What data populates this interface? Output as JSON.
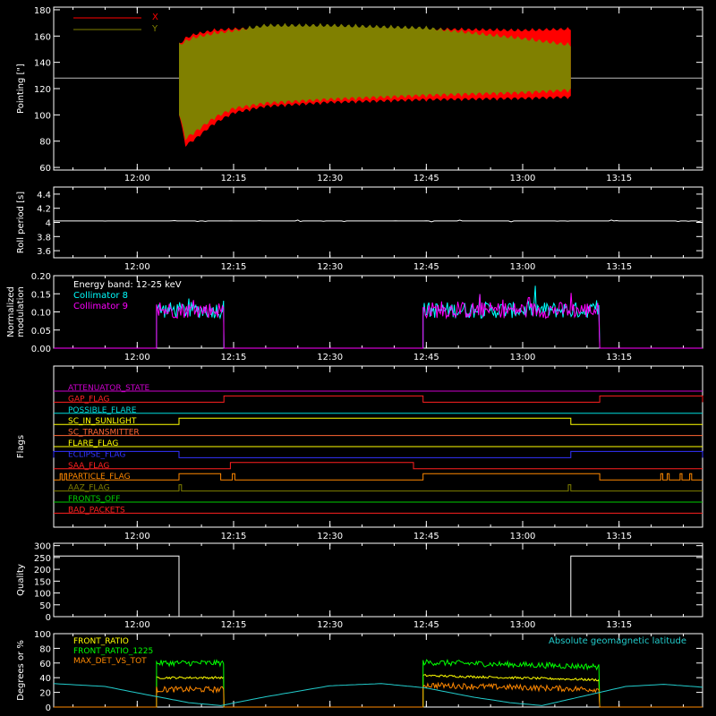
{
  "chart_data": [
    {
      "type": "area",
      "ylabel": "Pointing [\"]",
      "ylim": [
        58,
        182
      ],
      "xlim": [
        "11:47",
        "13:28"
      ],
      "x_ticks": [
        "12:00",
        "12:15",
        "12:30",
        "12:45",
        "13:00",
        "13:15"
      ],
      "y_ticks": [
        60,
        80,
        100,
        120,
        140,
        160,
        180
      ],
      "reference_line": 128,
      "data_start": "12:06.5",
      "data_end": "13:07.5",
      "legend": [
        {
          "name": "X",
          "color": "#ff0000"
        },
        {
          "name": "Y",
          "color": "#808000"
        }
      ],
      "series": [
        {
          "name": "X",
          "envelope_time": [
            "12:06.5",
            "12:07.5",
            "12:09",
            "12:12",
            "12:15",
            "12:20",
            "12:30",
            "12:45",
            "13:00",
            "13:07.5"
          ],
          "upper": [
            155,
            160,
            163,
            166,
            167,
            168,
            168,
            167,
            166,
            167
          ],
          "lower": [
            100,
            75,
            80,
            92,
            100,
            105,
            108,
            110,
            111,
            112
          ]
        },
        {
          "name": "Y",
          "envelope_time": [
            "12:06.5",
            "12:07.5",
            "12:09",
            "12:12",
            "12:15",
            "12:20",
            "12:30",
            "12:45",
            "13:00",
            "13:07.5"
          ],
          "upper": [
            155,
            158,
            161,
            164,
            166,
            170,
            170,
            168,
            160,
            155
          ],
          "lower": [
            100,
            80,
            85,
            96,
            103,
            107,
            110,
            113,
            115,
            117
          ]
        }
      ]
    },
    {
      "type": "line",
      "ylabel": "Roll period [s]",
      "ylim": [
        3.5,
        4.5
      ],
      "y_ticks": [
        3.6,
        3.8,
        4.0,
        4.2,
        4.4
      ],
      "x_ticks": [
        "12:00",
        "12:15",
        "12:30",
        "12:45",
        "13:00",
        "13:15"
      ],
      "series": [
        {
          "name": "",
          "value": 4.02
        }
      ]
    },
    {
      "type": "line",
      "ylabel": "Normalized modulation",
      "ylim": [
        0,
        0.2
      ],
      "y_ticks": [
        "0.00",
        "0.05",
        "0.10",
        "0.15",
        "0.20"
      ],
      "x_ticks": [
        "12:00",
        "12:15",
        "12:30",
        "12:45",
        "13:00",
        "13:15"
      ],
      "legend_title": "Energy band: 12-25 keV",
      "legend": [
        {
          "name": "Collimator 8",
          "color": "#00ffff"
        },
        {
          "name": "Collimator 9",
          "color": "#ff00ff"
        }
      ],
      "intervals": [
        [
          "12:03",
          "12:13.5"
        ],
        [
          "12:44.5",
          "13:12"
        ]
      ],
      "level_mean": 0.105
    },
    {
      "type": "line",
      "ylabel": "Flags",
      "x_ticks": [
        "12:00",
        "12:15",
        "12:30",
        "12:45",
        "13:00",
        "13:15"
      ],
      "flags": [
        {
          "name": "ATTENUATOR_STATE",
          "color": "#cc00cc",
          "high": []
        },
        {
          "name": "GAP_FLAG",
          "color": "#ff2020",
          "high": [
            [
              "12:13.5",
              "12:44.5"
            ],
            [
              "13:12",
              "13:28"
            ]
          ]
        },
        {
          "name": "POSSIBLE_FLARE",
          "color": "#00dddd",
          "high": []
        },
        {
          "name": "SC_IN_SUNLIGHT",
          "color": "#ffff00",
          "high": [
            [
              "12:06.5",
              "13:07.5"
            ]
          ]
        },
        {
          "name": "SC_TRANSMITTER",
          "color": "#ff6633",
          "high": []
        },
        {
          "name": "FLARE_FLAG",
          "color": "#ffff00",
          "high": []
        },
        {
          "name": "ECLIPSE_FLAG",
          "color": "#3333ff",
          "high": [
            [
              "11:47",
              "12:06.5"
            ],
            [
              "13:07.5",
              "13:28"
            ]
          ]
        },
        {
          "name": "SAA_FLAG",
          "color": "#ff2020",
          "high": [
            [
              "12:14.5",
              "12:43"
            ]
          ]
        },
        {
          "name": "PARTICLE_FLAG",
          "color": "#ff8800",
          "high": [
            [
              "11:48",
              "11:48.3"
            ],
            [
              "11:48.7",
              "11:49"
            ],
            [
              "12:06.5",
              "12:13"
            ],
            [
              "12:14.8",
              "12:15.2"
            ],
            [
              "12:44.5",
              "13:12"
            ],
            [
              "13:21.5",
              "13:21.8"
            ],
            [
              "13:22.5",
              "13:22.8"
            ],
            [
              "13:24.5",
              "13:24.8"
            ],
            [
              "13:26",
              "13:26.3"
            ]
          ]
        },
        {
          "name": "AAZ_FLAG",
          "color": "#808000",
          "high": [
            [
              "12:06.5",
              "12:06.9"
            ],
            [
              "13:07.1",
              "13:07.5"
            ]
          ]
        },
        {
          "name": "FRONTS_OFF",
          "color": "#00cc00",
          "high": []
        },
        {
          "name": "BAD_PACKETS",
          "color": "#ff2020",
          "high": []
        }
      ]
    },
    {
      "type": "line",
      "ylabel": "Quality",
      "ylim": [
        0,
        310
      ],
      "y_ticks": [
        0,
        50,
        100,
        150,
        200,
        250,
        300
      ],
      "x_ticks": [
        "12:00",
        "12:15",
        "12:30",
        "12:45",
        "13:00",
        "13:15"
      ],
      "series": [
        {
          "name": "",
          "steps": [
            [
              "11:47",
              "12:06.5",
              256
            ],
            [
              "12:06.5",
              "13:07.5",
              0
            ],
            [
              "13:07.5",
              "13:28",
              256
            ]
          ]
        }
      ]
    },
    {
      "type": "line",
      "ylabel": "Degrees or %",
      "ylim": [
        0,
        100
      ],
      "y_ticks": [
        0,
        20,
        40,
        60,
        80,
        100
      ],
      "intervals": [
        [
          "12:03",
          "12:13.5"
        ],
        [
          "12:44.5",
          "13:12"
        ]
      ],
      "series": [
        {
          "name": "FRONT_RATIO",
          "color": "#ffff00",
          "levels": [
            40,
            37
          ]
        },
        {
          "name": "FRONT_RATIO_1225",
          "color": "#00ff00",
          "levels": [
            60,
            55
          ]
        },
        {
          "name": "MAX_DET_VS_TOT",
          "color": "#ff8800",
          "levels": [
            24,
            24
          ]
        },
        {
          "name": "Absolute geomagnetic latitude",
          "color": "#22cccc",
          "time": [
            "11:47",
            "11:55",
            "12:02",
            "12:08",
            "12:13",
            "12:20",
            "12:30",
            "12:38",
            "12:45",
            "12:52",
            "12:58",
            "13:03",
            "13:08",
            "13:16",
            "13:22",
            "13:28"
          ],
          "values": [
            32,
            28,
            16,
            6,
            2,
            14,
            29,
            32,
            26,
            14,
            6,
            2,
            12,
            28,
            31,
            27
          ]
        }
      ]
    }
  ]
}
